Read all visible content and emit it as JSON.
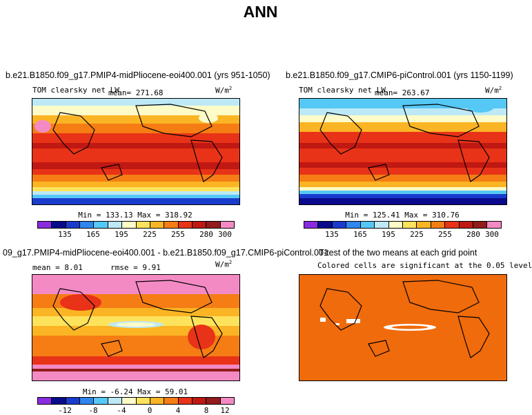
{
  "title": "ANN",
  "panels": [
    {
      "title": "b.e21.B1850.f09_g17.PMIP4-midPliocene-eoi400.001 (yrs 951-1050)",
      "variable": "TOM clearsky net LW",
      "mean_text": "mean= 271.68",
      "units": "W/m",
      "units_exp": "2",
      "minmax": "Min = 133.13 Max = 318.92",
      "colorbar_ticks": [
        "135",
        "165",
        "195",
        "225",
        "255",
        "280",
        "300"
      ]
    },
    {
      "title": "b.e21.B1850.f09_g17.CMIP6-piControl.001 (yrs 1150-1199)",
      "variable": "TOM clearsky net LW",
      "mean_text": "mean= 263.67",
      "units": "W/m",
      "units_exp": "2",
      "minmax": "Min = 125.41 Max = 310.76",
      "colorbar_ticks": [
        "135",
        "165",
        "195",
        "225",
        "255",
        "280",
        "300"
      ]
    },
    {
      "title": "09_g17.PMIP4-midPliocene-eoi400.001 - b.e21.B1850.f09_g17.CMIP6-piControl.001",
      "mean_text": "mean =   8.01",
      "rmse_text": "rmse =    9.91",
      "units": "W/m",
      "units_exp": "2",
      "minmax": "Min =  -6.24 Max =  59.01",
      "colorbar_ticks": [
        "-12",
        "-8",
        "-4",
        "0",
        "4",
        "8",
        "12"
      ]
    },
    {
      "title": "T-test of the two means at each grid point",
      "subtitle": "Colored cells are significant at the 0.05 level"
    }
  ],
  "colors": {
    "abs_scale": [
      "#8a2be2",
      "#0a0a8c",
      "#1a3ccd",
      "#2f86f0",
      "#56c8f5",
      "#bde9f7",
      "#fdfbc7",
      "#fde35c",
      "#fbb524",
      "#f57d14",
      "#e83318",
      "#c01812",
      "#921c1c",
      "#f48ac4"
    ],
    "diff_scale": [
      "#8a2be2",
      "#0a0a8c",
      "#1a3ccd",
      "#2f86f0",
      "#56c8f5",
      "#bde9f7",
      "#fdfbc7",
      "#fde35c",
      "#fbb524",
      "#f57d14",
      "#e83318",
      "#c01812",
      "#921c1c",
      "#f48ac4"
    ],
    "ttest_fill": "#f06b0c"
  }
}
